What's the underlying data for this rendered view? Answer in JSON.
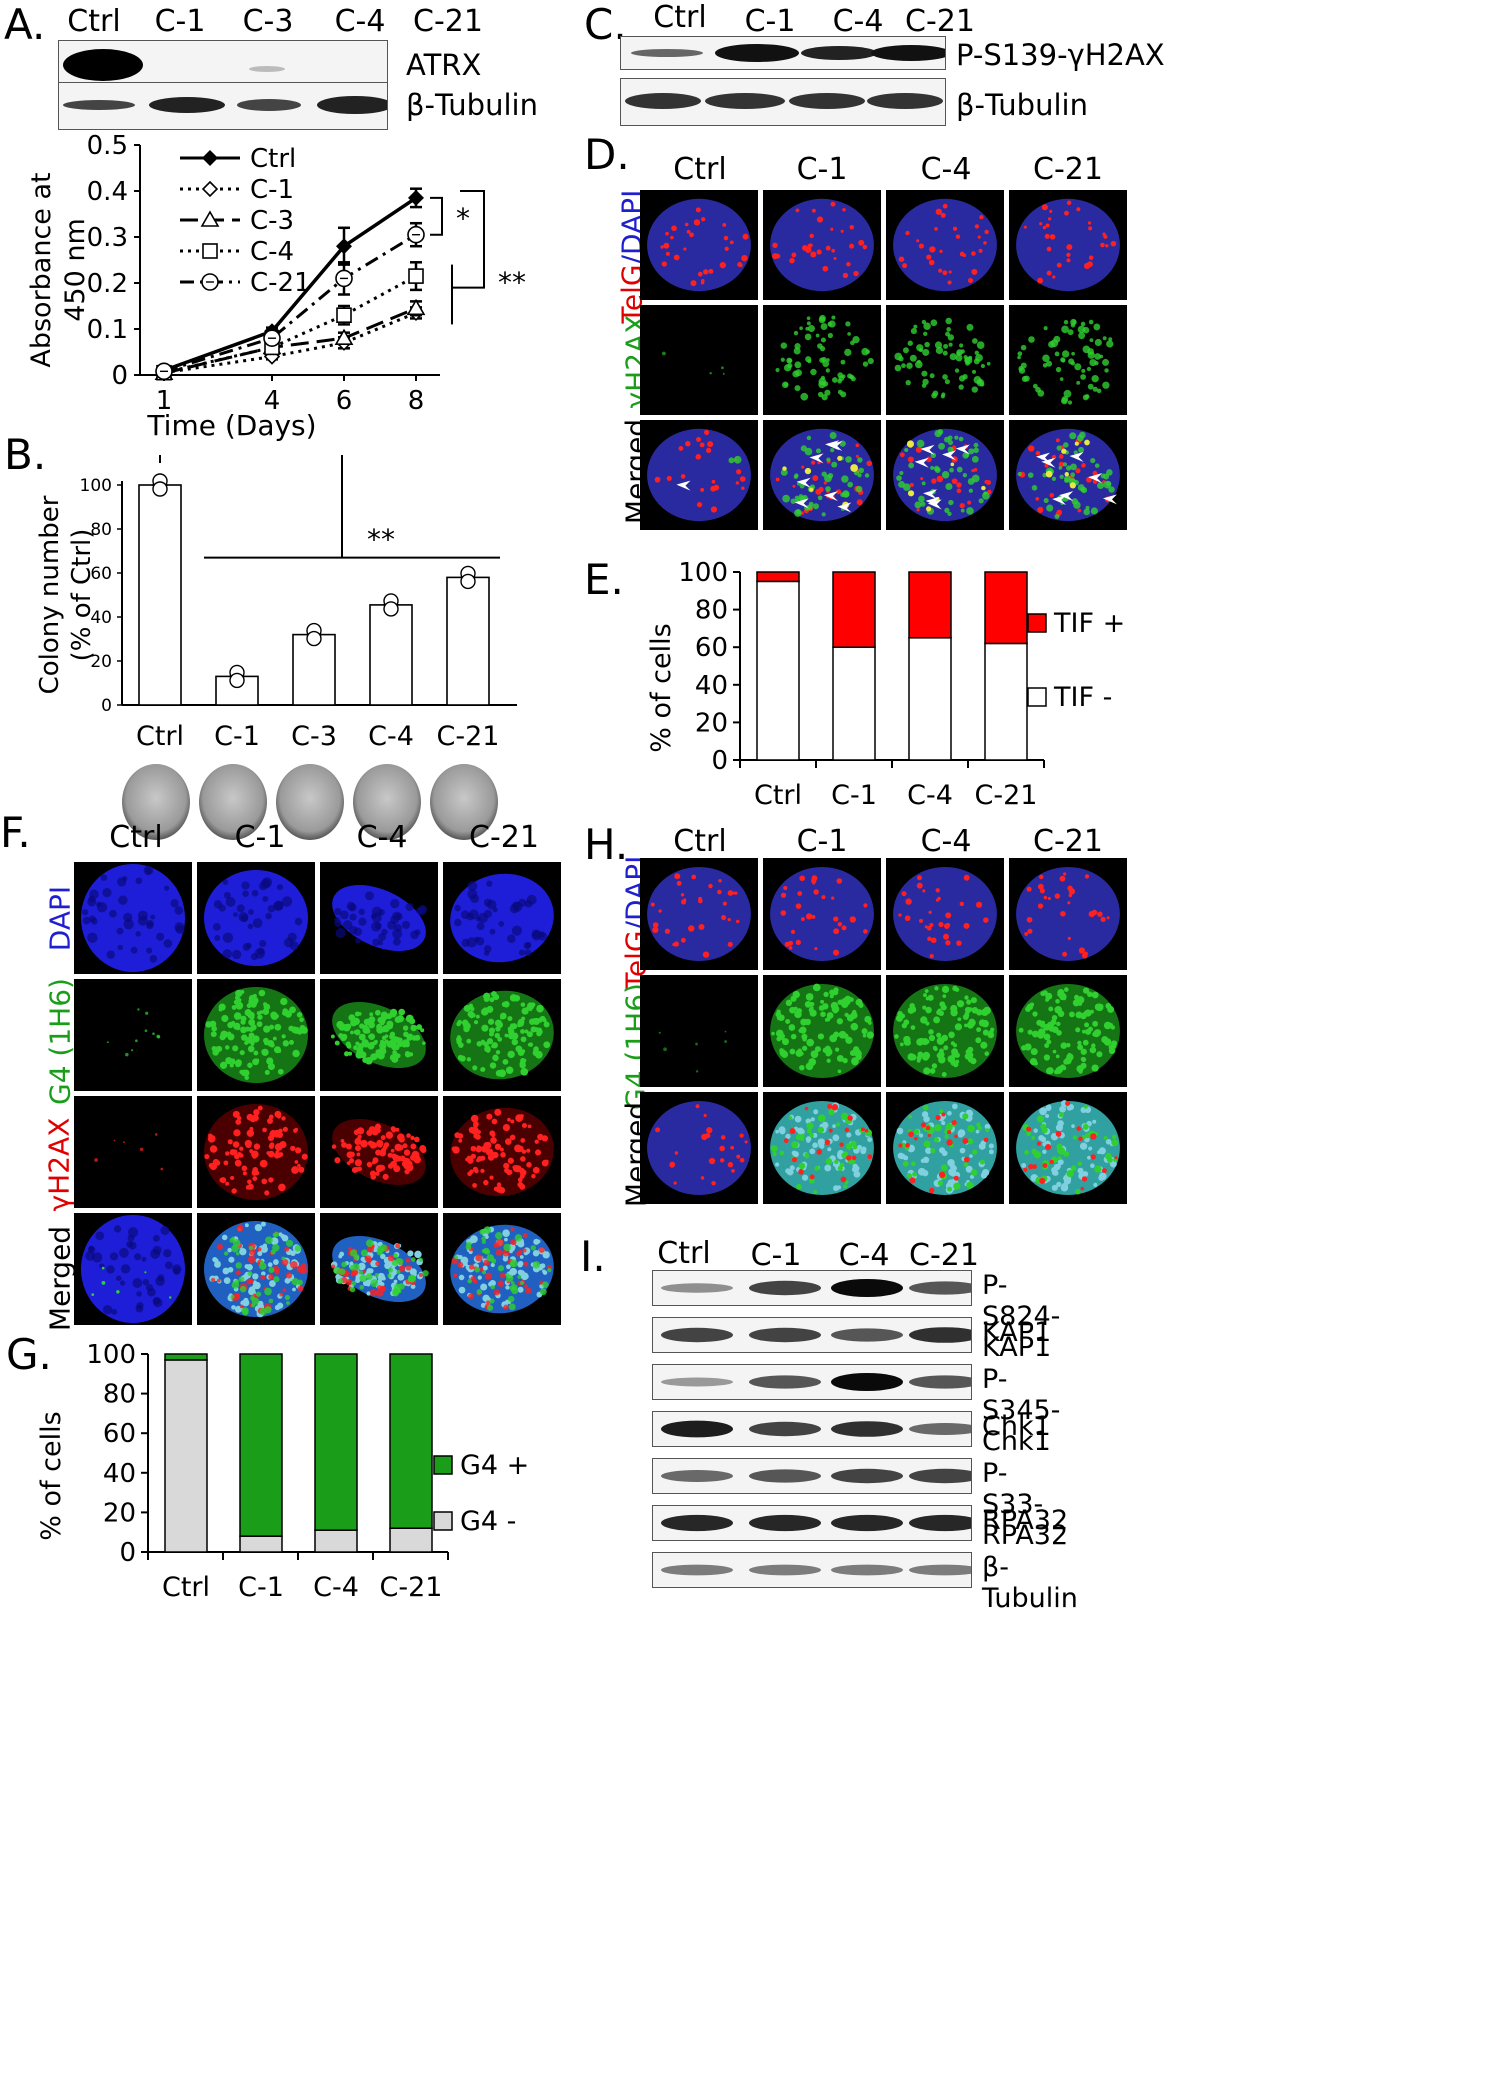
{
  "panels": {
    "A": {
      "label": "A.",
      "lanes": [
        "Ctrl",
        "C-1",
        "C-3",
        "C-4",
        "C-21"
      ],
      "blot_labels": [
        "ATRX",
        "β-Tubulin"
      ],
      "chart_data": {
        "type": "line",
        "xlabel": "Time (Days)",
        "ylabel": "Absorbance at 450 nm",
        "x": [
          1,
          4,
          6,
          8
        ],
        "xticks": [
          "1",
          "4",
          "6",
          "8"
        ],
        "ylim": [
          0,
          0.5
        ],
        "yticks": [
          "0",
          "0.1",
          "0.2",
          "0.3",
          "0.4",
          "0.5"
        ],
        "series": [
          {
            "name": "Ctrl",
            "values": [
              0.01,
              0.095,
              0.28,
              0.385
            ],
            "err": [
              0.004,
              0.008,
              0.04,
              0.02
            ]
          },
          {
            "name": "C-1",
            "values": [
              0.005,
              0.04,
              0.07,
              0.135
            ],
            "err": [
              0.003,
              0.006,
              0.012,
              0.012
            ]
          },
          {
            "name": "C-3",
            "values": [
              0.004,
              0.06,
              0.08,
              0.145
            ],
            "err": [
              0.003,
              0.008,
              0.012,
              0.015
            ]
          },
          {
            "name": "C-4",
            "values": [
              0.005,
              0.06,
              0.13,
              0.215
            ],
            "err": [
              0.003,
              0.006,
              0.02,
              0.03
            ]
          },
          {
            "name": "C-21",
            "values": [
              0.008,
              0.08,
              0.21,
              0.305
            ],
            "err": [
              0.004,
              0.01,
              0.035,
              0.025
            ]
          }
        ],
        "annotations": [
          "*",
          "**"
        ]
      }
    },
    "B": {
      "label": "B.",
      "chart_data": {
        "type": "bar",
        "ylabel_lines": [
          "Colony number",
          "(% of Ctrl)"
        ],
        "categories": [
          "Ctrl",
          "C-1",
          "C-3",
          "C-4",
          "C-21"
        ],
        "values": [
          100,
          13,
          32,
          45.5,
          58
        ],
        "ylim": [
          0,
          100
        ],
        "yticks": [
          "0",
          "20",
          "40",
          "60",
          "80",
          "100"
        ],
        "annotations": [
          "**"
        ]
      }
    },
    "C": {
      "label": "C.",
      "lanes": [
        "Ctrl",
        "C-1",
        "C-4",
        "C-21"
      ],
      "blot_labels": [
        "P-S139-γH2AX",
        "β-Tubulin"
      ]
    },
    "D": {
      "label": "D.",
      "cols": [
        "Ctrl",
        "C-1",
        "C-4",
        "C-21"
      ],
      "rows": [
        "TelG/DAPI",
        "γH2AX",
        "Merged"
      ]
    },
    "E": {
      "label": "E.",
      "chart_data": {
        "type": "bar",
        "stacked": true,
        "ylabel": "% of cells",
        "categories": [
          "Ctrl",
          "C-1",
          "C-4",
          "C-21"
        ],
        "ylim": [
          0,
          100
        ],
        "yticks": [
          "0",
          "20",
          "40",
          "60",
          "80",
          "100"
        ],
        "series": [
          {
            "name": "TIF -",
            "values": [
              95,
              60,
              65,
              62
            ],
            "color": "#ffffff"
          },
          {
            "name": "TIF +",
            "values": [
              5,
              40,
              35,
              38
            ],
            "color": "#ff0000"
          }
        ]
      }
    },
    "F": {
      "label": "F.",
      "cols": [
        "Ctrl",
        "C-1",
        "C-4",
        "C-21"
      ],
      "rows": [
        "DAPI",
        "G4 (1H6)",
        "γH2AX",
        "Merged"
      ]
    },
    "G": {
      "label": "G.",
      "chart_data": {
        "type": "bar",
        "stacked": true,
        "ylabel": "% of cells",
        "categories": [
          "Ctrl",
          "C-1",
          "C-4",
          "C-21"
        ],
        "ylim": [
          0,
          100
        ],
        "yticks": [
          "0",
          "20",
          "40",
          "60",
          "80",
          "100"
        ],
        "series": [
          {
            "name": "G4 -",
            "values": [
              97,
              8,
              11,
              12
            ],
            "color": "#d9d9d9"
          },
          {
            "name": "G4 +",
            "values": [
              3,
              92,
              89,
              88
            ],
            "color": "#1a9e1a"
          }
        ]
      }
    },
    "H": {
      "label": "H.",
      "cols": [
        "Ctrl",
        "C-1",
        "C-4",
        "C-21"
      ],
      "rows": [
        "TelG/DAPI",
        "G4 (1H6)",
        "Merged"
      ]
    },
    "I": {
      "label": "I.",
      "lanes": [
        "Ctrl",
        "C-1",
        "C-4",
        "C-21"
      ],
      "blot_labels": [
        "P-S824-KAP1",
        "KAP1",
        "P-S345-Chk1",
        "Chk1",
        "P-S33-RPA32",
        "RPA32",
        "β-Tubulin"
      ]
    }
  }
}
